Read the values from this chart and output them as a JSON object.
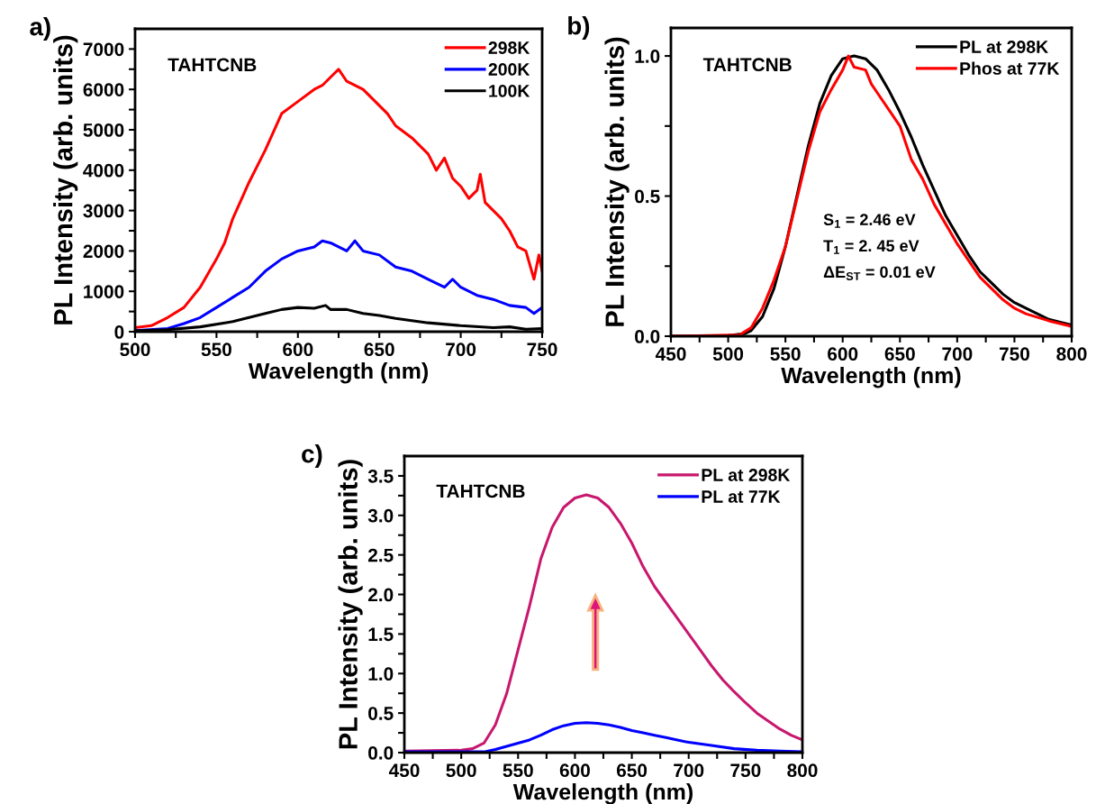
{
  "chart_data": [
    {
      "type": "line",
      "title": "a)",
      "xlabel": "Wavelength (nm)",
      "ylabel": "PL Intensity (arb. units)",
      "xlim": [
        500,
        750
      ],
      "ylim": [
        0,
        7500
      ],
      "xticks": [
        500,
        {
          "value": 525,
          "label": null
        },
        550,
        {
          "value": 575,
          "label": null
        },
        600,
        {
          "value": 625,
          "label": null
        },
        650,
        {
          "value": 675,
          "label": null
        },
        700,
        {
          "value": 725,
          "label": null
        },
        750
      ],
      "yticks": [
        0,
        {
          "value": 500,
          "label": null
        },
        1000,
        {
          "value": 1500,
          "label": null
        },
        2000,
        {
          "value": 2500,
          "label": null
        },
        3000,
        {
          "value": 3500,
          "label": null
        },
        4000,
        {
          "value": 4500,
          "label": null
        },
        5000,
        {
          "value": 5500,
          "label": null
        },
        6000,
        {
          "value": 6500,
          "label": null
        },
        7000
      ],
      "legend": "top right",
      "annotations": [
        "TAHTCNB"
      ],
      "series": [
        {
          "name": "298K",
          "color": "#ff0000",
          "x": [
            500,
            510,
            520,
            530,
            540,
            550,
            555,
            560,
            570,
            580,
            590,
            600,
            610,
            615,
            620,
            625,
            630,
            640,
            650,
            655,
            660,
            670,
            680,
            685,
            690,
            695,
            700,
            705,
            710,
            712,
            715,
            720,
            725,
            730,
            735,
            740,
            745,
            748,
            750
          ],
          "values": [
            100,
            150,
            350,
            600,
            1100,
            1800,
            2200,
            2800,
            3700,
            4500,
            5400,
            5700,
            6000,
            6100,
            6300,
            6500,
            6200,
            6000,
            5600,
            5400,
            5100,
            4800,
            4400,
            4000,
            4300,
            3800,
            3600,
            3300,
            3500,
            3900,
            3200,
            3000,
            2800,
            2500,
            2100,
            2000,
            1300,
            1900,
            1500
          ]
        },
        {
          "name": "200K",
          "color": "#0000ff",
          "x": [
            500,
            520,
            530,
            540,
            550,
            560,
            570,
            580,
            590,
            600,
            610,
            615,
            620,
            630,
            635,
            640,
            650,
            660,
            670,
            680,
            690,
            695,
            700,
            710,
            720,
            730,
            740,
            745,
            750
          ],
          "values": [
            30,
            80,
            200,
            350,
            600,
            850,
            1100,
            1500,
            1800,
            2000,
            2100,
            2250,
            2200,
            2000,
            2250,
            2000,
            1900,
            1600,
            1500,
            1300,
            1100,
            1300,
            1100,
            900,
            800,
            650,
            600,
            450,
            600
          ]
        },
        {
          "name": "100K",
          "color": "#000000",
          "x": [
            500,
            520,
            540,
            560,
            570,
            580,
            590,
            600,
            610,
            617,
            620,
            630,
            640,
            650,
            660,
            680,
            700,
            720,
            730,
            740,
            750
          ],
          "values": [
            20,
            50,
            120,
            250,
            350,
            450,
            550,
            600,
            580,
            650,
            550,
            550,
            450,
            400,
            330,
            220,
            150,
            100,
            120,
            60,
            80
          ]
        }
      ]
    },
    {
      "type": "line",
      "title": "b)",
      "xlabel": "Wavelength (nm)",
      "ylabel": "PL Intensity (arb. units)",
      "xlim": [
        450,
        800
      ],
      "ylim": [
        0,
        1.1
      ],
      "xticks": [
        450,
        {
          "value": 475,
          "label": null
        },
        500,
        {
          "value": 525,
          "label": null
        },
        550,
        {
          "value": 575,
          "label": null
        },
        600,
        {
          "value": 625,
          "label": null
        },
        650,
        {
          "value": 675,
          "label": null
        },
        700,
        {
          "value": 725,
          "label": null
        },
        750,
        {
          "value": 775,
          "label": null
        },
        800
      ],
      "yticks": [
        {
          "value": 0,
          "label": "0.0"
        },
        {
          "value": 0.25,
          "label": null
        },
        0.5,
        {
          "value": 0.75,
          "label": null
        },
        {
          "value": 1,
          "label": "1.0"
        }
      ],
      "legend": "top right",
      "annotations": [
        "TAHTCNB",
        "S$_{1}$ = 2.46 eV",
        "T$_{1}$ = 2. 45 eV",
        "ΔE$_{ST}$ = 0.01 eV"
      ],
      "series": [
        {
          "name": "PL at 298K",
          "color": "#000000",
          "x": [
            450,
            500,
            515,
            520,
            530,
            540,
            550,
            560,
            570,
            580,
            590,
            600,
            610,
            620,
            630,
            640,
            650,
            660,
            670,
            680,
            690,
            700,
            710,
            720,
            730,
            740,
            750,
            760,
            770,
            780,
            790,
            800
          ],
          "values": [
            0,
            0.002,
            0.01,
            0.02,
            0.07,
            0.17,
            0.32,
            0.5,
            0.68,
            0.83,
            0.93,
            0.99,
            1.0,
            0.99,
            0.95,
            0.88,
            0.8,
            0.71,
            0.61,
            0.52,
            0.43,
            0.36,
            0.29,
            0.23,
            0.19,
            0.15,
            0.12,
            0.1,
            0.08,
            0.06,
            0.05,
            0.04
          ]
        },
        {
          "name": "Phos at 77K",
          "color": "#ff0000",
          "x": [
            450,
            510,
            520,
            530,
            540,
            550,
            560,
            570,
            580,
            590,
            600,
            605,
            610,
            620,
            625,
            630,
            640,
            650,
            660,
            670,
            680,
            690,
            700,
            710,
            720,
            730,
            740,
            750,
            760,
            780,
            800
          ],
          "values": [
            0,
            0.005,
            0.03,
            0.1,
            0.2,
            0.32,
            0.49,
            0.66,
            0.8,
            0.88,
            0.95,
            1.0,
            0.96,
            0.95,
            0.9,
            0.87,
            0.81,
            0.75,
            0.63,
            0.56,
            0.47,
            0.4,
            0.33,
            0.27,
            0.21,
            0.17,
            0.13,
            0.1,
            0.08,
            0.055,
            0.035
          ]
        }
      ]
    },
    {
      "type": "line",
      "title": "c)",
      "xlabel": "Wavelength (nm)",
      "ylabel": "PL Intensity (arb. units)",
      "xlim": [
        450,
        800
      ],
      "ylim": [
        0,
        3.75
      ],
      "xticks": [
        450,
        {
          "value": 475,
          "label": null
        },
        500,
        {
          "value": 525,
          "label": null
        },
        550,
        {
          "value": 575,
          "label": null
        },
        600,
        {
          "value": 625,
          "label": null
        },
        650,
        {
          "value": 675,
          "label": null
        },
        700,
        {
          "value": 725,
          "label": null
        },
        750,
        {
          "value": 775,
          "label": null
        },
        800
      ],
      "yticks": [
        {
          "value": 0,
          "label": "0.0"
        },
        {
          "value": 0.25,
          "label": null
        },
        0.5,
        {
          "value": 0.75,
          "label": null
        },
        {
          "value": 1,
          "label": "1.0"
        },
        {
          "value": 1.25,
          "label": null
        },
        1.5,
        {
          "value": 1.75,
          "label": null
        },
        {
          "value": 2,
          "label": "2.0"
        },
        {
          "value": 2.25,
          "label": null
        },
        2.5,
        {
          "value": 2.75,
          "label": null
        },
        {
          "value": 3,
          "label": "3.0"
        },
        {
          "value": 3.25,
          "label": null
        },
        3.5
      ],
      "legend": "top right",
      "annotations": [
        "TAHTCNB"
      ],
      "series": [
        {
          "name": "PL at 298K",
          "color": "#c8186e",
          "x": [
            450,
            500,
            510,
            520,
            530,
            540,
            550,
            560,
            570,
            580,
            590,
            600,
            610,
            620,
            630,
            640,
            650,
            660,
            670,
            680,
            690,
            700,
            710,
            720,
            730,
            740,
            750,
            760,
            770,
            780,
            790,
            800
          ],
          "values": [
            0.02,
            0.03,
            0.05,
            0.12,
            0.35,
            0.75,
            1.3,
            1.85,
            2.45,
            2.85,
            3.1,
            3.22,
            3.26,
            3.22,
            3.1,
            2.9,
            2.65,
            2.35,
            2.1,
            1.9,
            1.7,
            1.5,
            1.3,
            1.1,
            0.92,
            0.77,
            0.63,
            0.5,
            0.4,
            0.3,
            0.22,
            0.16
          ]
        },
        {
          "name": "PL at 77K",
          "color": "#0000ff",
          "x": [
            450,
            520,
            530,
            540,
            550,
            560,
            570,
            580,
            590,
            600,
            610,
            620,
            630,
            640,
            650,
            660,
            670,
            680,
            690,
            700,
            720,
            740,
            760,
            780,
            800
          ],
          "values": [
            0.01,
            0.01,
            0.04,
            0.08,
            0.12,
            0.16,
            0.22,
            0.29,
            0.34,
            0.37,
            0.38,
            0.37,
            0.35,
            0.32,
            0.28,
            0.25,
            0.22,
            0.19,
            0.16,
            0.13,
            0.09,
            0.05,
            0.03,
            0.02,
            0.01
          ]
        }
      ]
    }
  ]
}
